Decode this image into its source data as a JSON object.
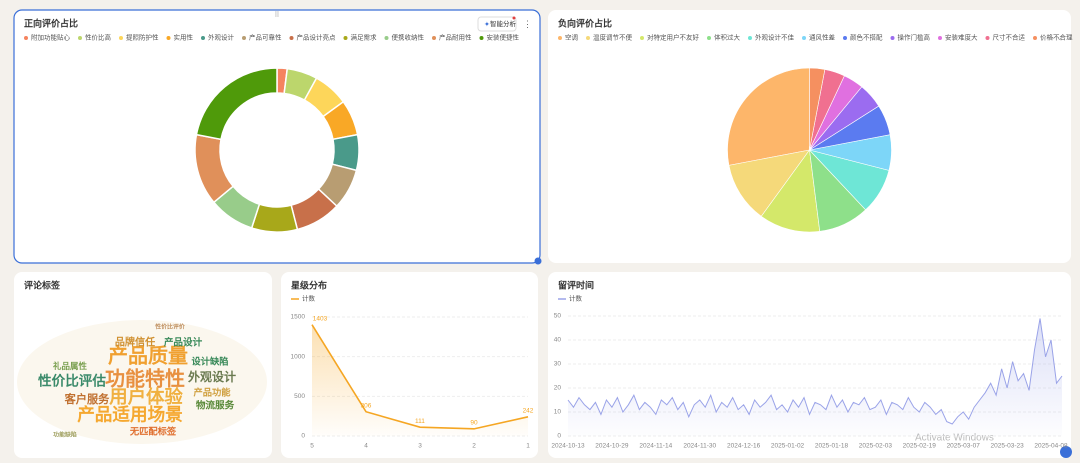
{
  "chart_data": [
    {
      "type": "donut",
      "title": "正向评价占比",
      "categories": [
        "附加功能贴心",
        "性价比高",
        "提照防护性",
        "实用性",
        "外观设计",
        "产品可靠性",
        "产品设计亮点",
        "满足需求",
        "便携收纳性",
        "产品耐用性",
        "安装便捷性"
      ],
      "values": [
        2,
        6,
        7,
        7,
        7,
        8,
        9,
        9,
        9,
        14,
        22
      ],
      "colors": [
        "#f5845f",
        "#bcd66c",
        "#fdd65a",
        "#f9a826",
        "#4a9a8a",
        "#b89d72",
        "#c8704a",
        "#a8a81a",
        "#98cc8a",
        "#e0905a",
        "#4f9a0a"
      ]
    },
    {
      "type": "pie",
      "title": "负向评价占比",
      "categories": [
        "空调",
        "温度调节不便",
        "对特定用户不友好",
        "体积过大",
        "外观设计不佳",
        "通风性差",
        "颜色不搭配",
        "操作门槛高",
        "安装难度大",
        "尺寸不合适",
        "价格不合理"
      ],
      "values": [
        28,
        12,
        12,
        10,
        9,
        7,
        6,
        5,
        4,
        4,
        3
      ],
      "colors": [
        "#fdb66a",
        "#f5d97a",
        "#d4e86a",
        "#8ee08a",
        "#6ee6d6",
        "#7dd6f8",
        "#5b7bf0",
        "#9b6cf0",
        "#e070e0",
        "#f07090",
        "#f59060"
      ]
    },
    {
      "type": "wordcloud",
      "title": "评论标签",
      "words": [
        "产品质量",
        "功能特性",
        "用户体验",
        "产品适用场景",
        "性价比评估",
        "外观设计",
        "客户服务",
        "物流服务",
        "品牌信任",
        "产品设计",
        "设计缺陷",
        "产品功能",
        "无匹配标签",
        "礼品属性",
        "功能缺陷",
        "性价比评价"
      ],
      "values": [
        100,
        100,
        90,
        85,
        60,
        50,
        45,
        35,
        38,
        35,
        33,
        33,
        33,
        28,
        12,
        12
      ],
      "colors": [
        "#f0a030",
        "#e89040",
        "#f0b040",
        "#f5a830",
        "#3a8a6a",
        "#6a7a50",
        "#c07030",
        "#5a8a3a",
        "#d09030",
        "#3a8a5a",
        "#3a8a5a",
        "#d0a040",
        "#e07030",
        "#7aa050",
        "#a0a060",
        "#c09060"
      ]
    },
    {
      "type": "line",
      "title": "星级分布",
      "categories": [
        "5",
        "4",
        "3",
        "2",
        "1"
      ],
      "series": [
        {
          "name": "计数",
          "color": "#f5a623",
          "values": [
            1403,
            306,
            111,
            90,
            242
          ]
        }
      ],
      "ylim": [
        0,
        1500
      ],
      "yticks": [
        0,
        500,
        1000,
        1500
      ],
      "grid": true,
      "area": true,
      "data_labels": true
    },
    {
      "type": "line",
      "title": "留评时间",
      "categories": [
        "2024-10-13",
        null,
        null,
        null,
        null,
        null,
        null,
        null,
        "2024-10-29",
        null,
        null,
        null,
        null,
        null,
        null,
        null,
        "2024-11-14",
        null,
        null,
        null,
        null,
        null,
        null,
        null,
        "2024-11-30",
        null,
        null,
        null,
        null,
        null,
        null,
        null,
        "2024-12-16",
        null,
        null,
        null,
        null,
        null,
        null,
        null,
        "2025-01-02",
        null,
        null,
        null,
        null,
        null,
        null,
        null,
        "2025-01-18",
        null,
        null,
        null,
        null,
        null,
        null,
        null,
        "2025-02-03",
        null,
        null,
        null,
        null,
        null,
        null,
        null,
        "2025-02-19",
        null,
        null,
        null,
        null,
        null,
        null,
        null,
        "2025-03-07",
        null,
        null,
        null,
        null,
        null,
        null,
        null,
        "2025-03-23",
        null,
        null,
        null,
        null,
        null,
        null,
        null,
        "2025-04-08",
        null,
        null
      ],
      "series": [
        {
          "name": "计数",
          "color": "#9aa3e8",
          "values": [
            15,
            12,
            16,
            13,
            11,
            14,
            9,
            15,
            12,
            16,
            10,
            13,
            17,
            11,
            14,
            12,
            9,
            15,
            13,
            16,
            11,
            14,
            8,
            13,
            15,
            12,
            17,
            10,
            14,
            12,
            16,
            11,
            13,
            9,
            15,
            12,
            14,
            17,
            11,
            13,
            10,
            15,
            12,
            16,
            9,
            14,
            13,
            11,
            17,
            12,
            15,
            10,
            14,
            13,
            16,
            11,
            12,
            15,
            9,
            14,
            13,
            11,
            16,
            12,
            10,
            14,
            12,
            9,
            11,
            6,
            5,
            8,
            10,
            7,
            12,
            15,
            18,
            22,
            17,
            28,
            20,
            31,
            23,
            26,
            19,
            36,
            49,
            33,
            40,
            22,
            25
          ]
        }
      ],
      "ylim": [
        0,
        50
      ],
      "yticks": [
        0,
        10,
        20,
        30,
        40,
        50
      ],
      "grid": true,
      "area": true
    }
  ],
  "button": "智能分析",
  "watermark": "Activate Windows"
}
